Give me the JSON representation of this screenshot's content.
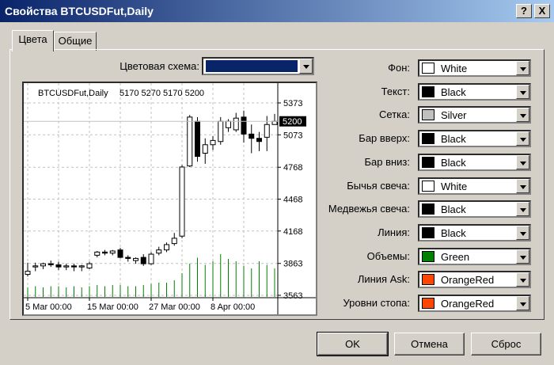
{
  "window": {
    "title": "Свойства BTCUSDFut,Daily",
    "help_btn": "?",
    "close_btn": "X"
  },
  "tabs": [
    {
      "label": "Цвета",
      "active": true
    },
    {
      "label": "Общие",
      "active": false
    }
  ],
  "color_scheme": {
    "label": "Цветовая схема:",
    "color": "#0a246a"
  },
  "properties": [
    {
      "label": "Фон:",
      "value": "White",
      "color": "#ffffff"
    },
    {
      "label": "Текст:",
      "value": "Black",
      "color": "#000000"
    },
    {
      "label": "Сетка:",
      "value": "Silver",
      "color": "#c0c0c0"
    },
    {
      "label": "Бар вверх:",
      "value": "Black",
      "color": "#000000"
    },
    {
      "label": "Бар вниз:",
      "value": "Black",
      "color": "#000000"
    },
    {
      "label": "Бычья свеча:",
      "value": "White",
      "color": "#ffffff"
    },
    {
      "label": "Медвежья свеча:",
      "value": "Black",
      "color": "#000000"
    },
    {
      "label": "Линия:",
      "value": "Black",
      "color": "#000000"
    },
    {
      "label": "Объемы:",
      "value": "Green",
      "color": "#008000"
    },
    {
      "label": "Линия Ask:",
      "value": "OrangeRed",
      "color": "#ff4500"
    },
    {
      "label": "Уровни стопа:",
      "value": "OrangeRed",
      "color": "#ff4500"
    }
  ],
  "buttons": {
    "ok": "OK",
    "cancel": "Отмена",
    "reset": "Сброс"
  },
  "chart_data": {
    "type": "candlestick",
    "symbol_label": "BTCUSDFut,Daily",
    "ohlc_label": "5170 5270 5170 5200",
    "current_price": 5200,
    "current_price_label": "5200",
    "y_ticks": [
      "5373",
      "5073",
      "4768",
      "4468",
      "4168",
      "3863",
      "3563"
    ],
    "ylim": [
      3563,
      5373
    ],
    "x_ticks": [
      "5 Mar 00:00",
      "15 Mar 00:00",
      "27 Mar 00:00",
      "8 Apr 00:00"
    ],
    "grid": true,
    "candles": [
      {
        "o": 3760,
        "h": 3870,
        "l": 3740,
        "c": 3790
      },
      {
        "o": 3830,
        "h": 3870,
        "l": 3790,
        "c": 3840
      },
      {
        "o": 3840,
        "h": 3870,
        "l": 3810,
        "c": 3860
      },
      {
        "o": 3860,
        "h": 3890,
        "l": 3830,
        "c": 3850
      },
      {
        "o": 3850,
        "h": 3880,
        "l": 3800,
        "c": 3830
      },
      {
        "o": 3830,
        "h": 3860,
        "l": 3800,
        "c": 3840
      },
      {
        "o": 3840,
        "h": 3860,
        "l": 3790,
        "c": 3830
      },
      {
        "o": 3830,
        "h": 3850,
        "l": 3790,
        "c": 3840
      },
      {
        "o": 3820,
        "h": 3880,
        "l": 3810,
        "c": 3860
      },
      {
        "o": 3940,
        "h": 3980,
        "l": 3920,
        "c": 3970
      },
      {
        "o": 3970,
        "h": 3990,
        "l": 3940,
        "c": 3960
      },
      {
        "o": 3960,
        "h": 3990,
        "l": 3940,
        "c": 3980
      },
      {
        "o": 3990,
        "h": 4010,
        "l": 3910,
        "c": 3920
      },
      {
        "o": 3920,
        "h": 3940,
        "l": 3880,
        "c": 3910
      },
      {
        "o": 3890,
        "h": 3920,
        "l": 3860,
        "c": 3910
      },
      {
        "o": 3920,
        "h": 3950,
        "l": 3840,
        "c": 3860
      },
      {
        "o": 3860,
        "h": 3970,
        "l": 3850,
        "c": 3950
      },
      {
        "o": 3960,
        "h": 4020,
        "l": 3940,
        "c": 3990
      },
      {
        "o": 3990,
        "h": 4060,
        "l": 3970,
        "c": 4040
      },
      {
        "o": 4050,
        "h": 4150,
        "l": 4030,
        "c": 4100
      },
      {
        "o": 4120,
        "h": 4790,
        "l": 4100,
        "c": 4770
      },
      {
        "o": 4780,
        "h": 5260,
        "l": 4770,
        "c": 5240
      },
      {
        "o": 5200,
        "h": 5240,
        "l": 4820,
        "c": 4870
      },
      {
        "o": 4900,
        "h": 5040,
        "l": 4800,
        "c": 4980
      },
      {
        "o": 4980,
        "h": 5060,
        "l": 4930,
        "c": 5020
      },
      {
        "o": 5010,
        "h": 5240,
        "l": 4980,
        "c": 5200
      },
      {
        "o": 5140,
        "h": 5220,
        "l": 5100,
        "c": 5200
      },
      {
        "o": 5120,
        "h": 5280,
        "l": 5100,
        "c": 5230
      },
      {
        "o": 5240,
        "h": 5300,
        "l": 5000,
        "c": 5080
      },
      {
        "o": 5080,
        "h": 5170,
        "l": 4900,
        "c": 5040
      },
      {
        "o": 5040,
        "h": 5100,
        "l": 4920,
        "c": 5010
      },
      {
        "o": 5050,
        "h": 5250,
        "l": 4920,
        "c": 5170
      },
      {
        "o": 5170,
        "h": 5270,
        "l": 5170,
        "c": 5200
      }
    ],
    "volumes": [
      8,
      9,
      8,
      9,
      9,
      8,
      9,
      8,
      9,
      10,
      9,
      10,
      10,
      9,
      9,
      10,
      11,
      12,
      12,
      14,
      20,
      28,
      33,
      27,
      30,
      36,
      32,
      30,
      26,
      24,
      30,
      27,
      24
    ],
    "volume_max": 40
  }
}
